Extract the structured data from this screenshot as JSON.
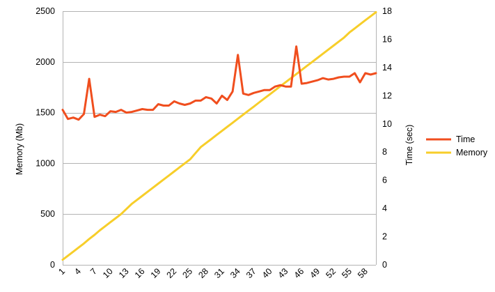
{
  "chart_data": {
    "type": "line",
    "x": [
      1,
      2,
      3,
      4,
      5,
      6,
      7,
      8,
      9,
      10,
      11,
      12,
      13,
      14,
      15,
      16,
      17,
      18,
      19,
      20,
      21,
      22,
      23,
      24,
      25,
      26,
      27,
      28,
      29,
      30,
      31,
      32,
      33,
      34,
      35,
      36,
      37,
      38,
      39,
      40,
      41,
      42,
      43,
      44,
      45,
      46,
      47,
      48,
      49,
      50,
      51,
      52,
      53,
      54,
      55,
      56,
      57,
      58,
      59,
      60
    ],
    "x_tick_labels": [
      "1",
      "4",
      "7",
      "10",
      "13",
      "16",
      "19",
      "22",
      "25",
      "28",
      "31",
      "34",
      "37",
      "40",
      "43",
      "46",
      "49",
      "52",
      "55",
      "58"
    ],
    "x_tick_values": [
      1,
      4,
      7,
      10,
      13,
      16,
      19,
      22,
      25,
      28,
      31,
      34,
      37,
      40,
      43,
      46,
      49,
      52,
      55,
      58
    ],
    "y_left": {
      "label": "Memory (Mb)",
      "lim": [
        0,
        2500
      ],
      "ticks": [
        "0",
        "500",
        "1000",
        "1500",
        "2000",
        "2500"
      ],
      "tick_values": [
        0,
        500,
        1000,
        1500,
        2000,
        2500
      ]
    },
    "y_right": {
      "label": "Time (sec)",
      "lim": [
        0,
        18
      ],
      "ticks": [
        "0",
        "2",
        "4",
        "6",
        "8",
        "10",
        "12",
        "14",
        "16",
        "18"
      ],
      "tick_values": [
        0,
        2,
        4,
        6,
        8,
        10,
        12,
        14,
        16,
        18
      ]
    },
    "grid": "horizontal",
    "legend_position": "right",
    "series": [
      {
        "name": "Time",
        "axis": "right",
        "color": "#f04e1e",
        "values": [
          11.0,
          10.35,
          10.45,
          10.3,
          10.7,
          13.2,
          10.5,
          10.65,
          10.55,
          10.9,
          10.85,
          11.0,
          10.8,
          10.85,
          10.95,
          11.05,
          11.0,
          11.0,
          11.4,
          11.3,
          11.3,
          11.6,
          11.45,
          11.35,
          11.45,
          11.65,
          11.65,
          11.9,
          11.8,
          11.45,
          12.0,
          11.7,
          12.3,
          14.9,
          12.15,
          12.05,
          12.2,
          12.3,
          12.4,
          12.4,
          12.65,
          12.75,
          12.65,
          12.65,
          15.5,
          12.85,
          12.9,
          13.0,
          13.1,
          13.25,
          13.15,
          13.2,
          13.3,
          13.35,
          13.35,
          13.6,
          12.95,
          13.6,
          13.5,
          13.6
        ]
      },
      {
        "name": "Memory",
        "axis": "left",
        "color": "#f7ce2a",
        "values": [
          50,
          90,
          130,
          170,
          210,
          255,
          295,
          340,
          380,
          420,
          460,
          500,
          550,
          600,
          640,
          680,
          720,
          760,
          800,
          840,
          880,
          920,
          960,
          1000,
          1040,
          1100,
          1160,
          1200,
          1240,
          1280,
          1320,
          1360,
          1400,
          1440,
          1480,
          1520,
          1560,
          1600,
          1640,
          1680,
          1720,
          1760,
          1800,
          1840,
          1880,
          1920,
          1960,
          2000,
          2040,
          2080,
          2120,
          2160,
          2200,
          2240,
          2290,
          2330,
          2370,
          2410,
          2450,
          2490
        ]
      }
    ]
  }
}
